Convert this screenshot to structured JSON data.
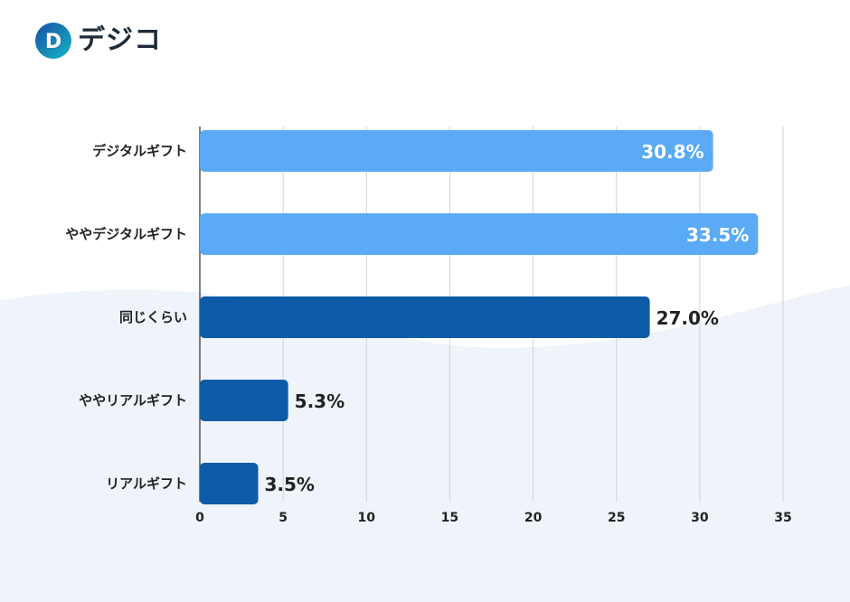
{
  "brand": {
    "name": "デジコ",
    "mark_letter": "D",
    "colors": {
      "mark_start": "#1a4fa3",
      "mark_end": "#15b6c6",
      "text": "#1e2a3a"
    }
  },
  "chart_data": {
    "type": "bar",
    "orientation": "horizontal",
    "title": "",
    "xlabel": "",
    "ylabel": "",
    "categories": [
      "デジタルギフト",
      "ややデジタルギフト",
      "同じくらい",
      "ややリアルギフト",
      "リアルギフト"
    ],
    "values": [
      30.8,
      33.5,
      27.0,
      5.3,
      3.5
    ],
    "value_labels": [
      "30.8%",
      "33.5%",
      "27.0%",
      "5.3%",
      "3.5%"
    ],
    "bar_colors": [
      "#5aaaf5",
      "#5aaaf5",
      "#0e5ba8",
      "#0e5ba8",
      "#0e5ba8"
    ],
    "label_inside": [
      true,
      true,
      false,
      false,
      false
    ],
    "xlim": [
      0,
      35
    ],
    "xticks": [
      0,
      5,
      10,
      15,
      20,
      25,
      30,
      35
    ],
    "grid": true
  }
}
